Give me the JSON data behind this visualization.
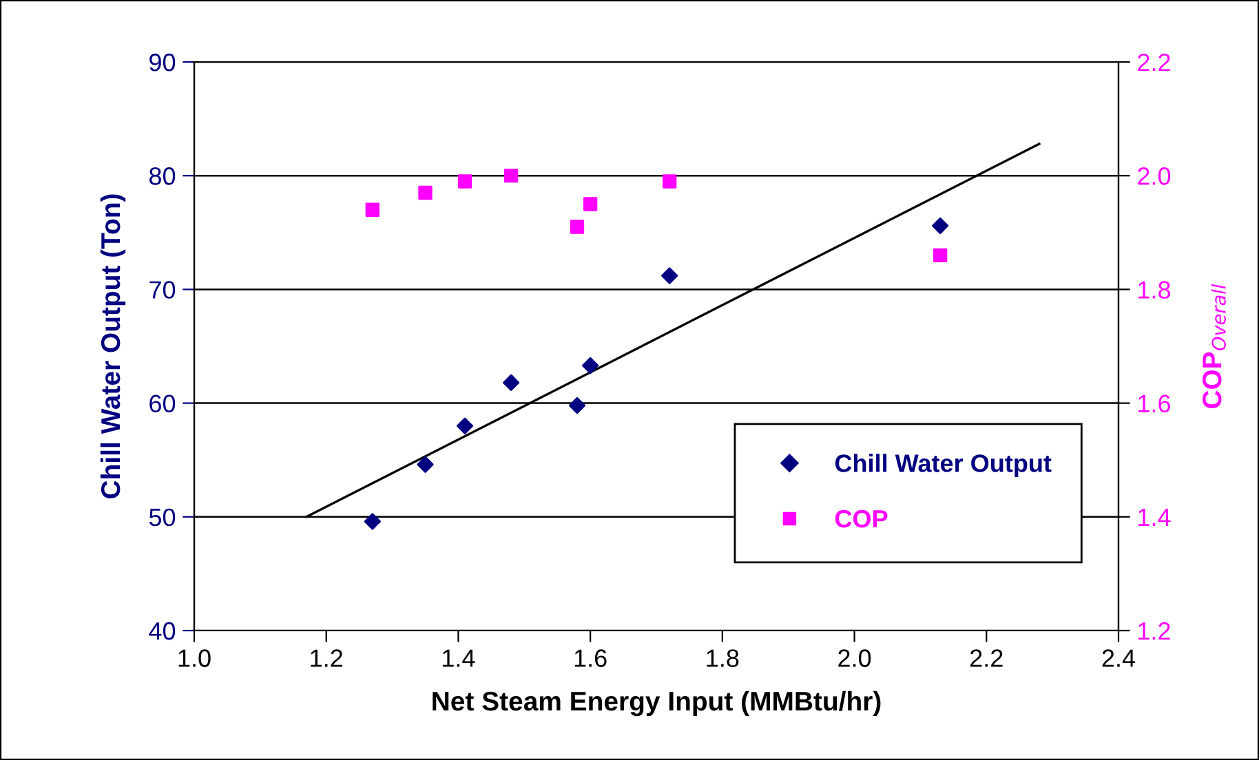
{
  "chart_data": {
    "type": "scatter",
    "xlabel": "Net Steam Energy Input (MMBtu/hr)",
    "ylabel": "Chill Water Output (Ton)",
    "y2label": "COP$_{Overall}$",
    "series": [
      {
        "name": "Chill Water Output",
        "marker": "diamond",
        "color": "#000080",
        "x": [
          1.27,
          1.35,
          1.41,
          1.48,
          1.58,
          1.6,
          1.72,
          2.13
        ],
        "values": [
          49.6,
          54.6,
          58.0,
          61.8,
          59.8,
          63.3,
          71.2,
          75.6
        ]
      },
      {
        "name": "COP",
        "marker": "square",
        "color": "#ff00ff",
        "axis": "y2",
        "x": [
          1.27,
          1.35,
          1.41,
          1.48,
          1.58,
          1.6,
          1.72,
          2.13
        ],
        "values": [
          1.94,
          1.97,
          1.99,
          2.0,
          1.91,
          1.95,
          1.99,
          1.86
        ]
      },
      {
        "type": "line",
        "marker": "none",
        "line_style": "solid",
        "color": "#000000",
        "x": [
          1.17,
          2.28
        ],
        "values": [
          50,
          82.8
        ]
      }
    ],
    "xlim": [
      1.0,
      2.4
    ],
    "xticks": [
      {
        "value": 1.0,
        "label": "1.0"
      },
      1.2,
      1.4,
      1.6,
      1.8,
      {
        "value": 2.0,
        "label": "2.0"
      },
      2.2,
      2.4
    ],
    "ylim": [
      40,
      90
    ],
    "yticks": [
      40,
      50,
      60,
      70,
      80,
      90
    ],
    "y2lim": [
      1.2,
      2.2
    ],
    "y2ticks": [
      1.2,
      1.4,
      1.6,
      1.8,
      {
        "value": 2.0,
        "label": "2.0"
      },
      2.2
    ],
    "grid": "y",
    "legend": "bottom right"
  }
}
